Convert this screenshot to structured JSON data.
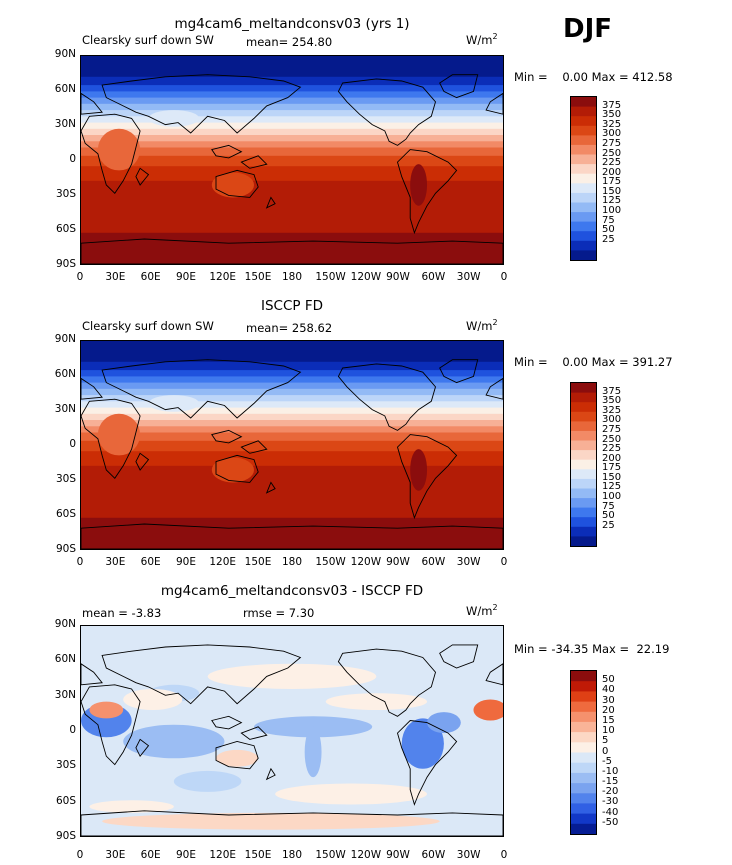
{
  "season": "DJF",
  "panels": [
    {
      "title": "mg4cam6_meltandconsv03 (yrs 1)",
      "var_label": "Clearsky surf down SW",
      "mean_label": "mean= 254.80",
      "units": "W/m",
      "units_sup": "2",
      "minmax": "Min =    0.00 Max = 412.58",
      "lat_labels": [
        "90N",
        "60N",
        "30N",
        "0",
        "30S",
        "60S",
        "90S"
      ],
      "lon_labels": [
        "0",
        "30E",
        "60E",
        "90E",
        "120E",
        "150E",
        "180",
        "150W",
        "120W",
        "90W",
        "60W",
        "30W",
        "0"
      ],
      "cbar_labels": [
        "375",
        "350",
        "325",
        "300",
        "275",
        "250",
        "225",
        "200",
        "175",
        "150",
        "125",
        "100",
        "75",
        "50",
        "25"
      ]
    },
    {
      "title": "ISCCP FD",
      "var_label": "Clearsky surf down SW",
      "mean_label": "mean= 258.62",
      "units": "W/m",
      "units_sup": "2",
      "minmax": "Min =    0.00 Max = 391.27",
      "lat_labels": [
        "90N",
        "60N",
        "30N",
        "0",
        "30S",
        "60S",
        "90S"
      ],
      "lon_labels": [
        "0",
        "30E",
        "60E",
        "90E",
        "120E",
        "150E",
        "180",
        "150W",
        "120W",
        "90W",
        "60W",
        "30W",
        "0"
      ],
      "cbar_labels": [
        "375",
        "350",
        "325",
        "300",
        "275",
        "250",
        "225",
        "200",
        "175",
        "150",
        "125",
        "100",
        "75",
        "50",
        "25"
      ]
    },
    {
      "title": "mg4cam6_meltandconsv03 - ISCCP FD",
      "var_label": "mean =   -3.83",
      "mean_label": "rmse =    7.30",
      "units": "W/m",
      "units_sup": "2",
      "minmax": "Min = -34.35 Max =  22.19",
      "lat_labels": [
        "90N",
        "60N",
        "30N",
        "0",
        "30S",
        "60S",
        "90S"
      ],
      "lon_labels": [
        "0",
        "30E",
        "60E",
        "90E",
        "120E",
        "150E",
        "180",
        "150W",
        "120W",
        "90W",
        "60W",
        "30W",
        "0"
      ],
      "cbar_labels": [
        "50",
        "40",
        "30",
        "20",
        "15",
        "10",
        "5",
        "0",
        "-5",
        "-10",
        "-15",
        "-20",
        "-30",
        "-40",
        "-50"
      ]
    }
  ],
  "colors": {
    "abs_palette": [
      "#8b0d0d",
      "#b31c06",
      "#cb2d05",
      "#db4715",
      "#e8673a",
      "#f28a66",
      "#f7b096",
      "#fbd6c6",
      "#fbf0e6",
      "#dde9f8",
      "#bcd5f8",
      "#93baf5",
      "#6a9af2",
      "#3e78ee",
      "#1f52de",
      "#0b2db8",
      "#051a8c"
    ],
    "diff_palette": [
      "#8b0d0d",
      "#c01a06",
      "#df4015",
      "#ef6a3e",
      "#f5916d",
      "#f9b498",
      "#fcd8c5",
      "#fdf0e6",
      "#dbe8f7",
      "#bed7f7",
      "#9bbdf3",
      "#7aa3ef",
      "#5283ec",
      "#3060e4",
      "#1238c7",
      "#061d94"
    ]
  }
}
